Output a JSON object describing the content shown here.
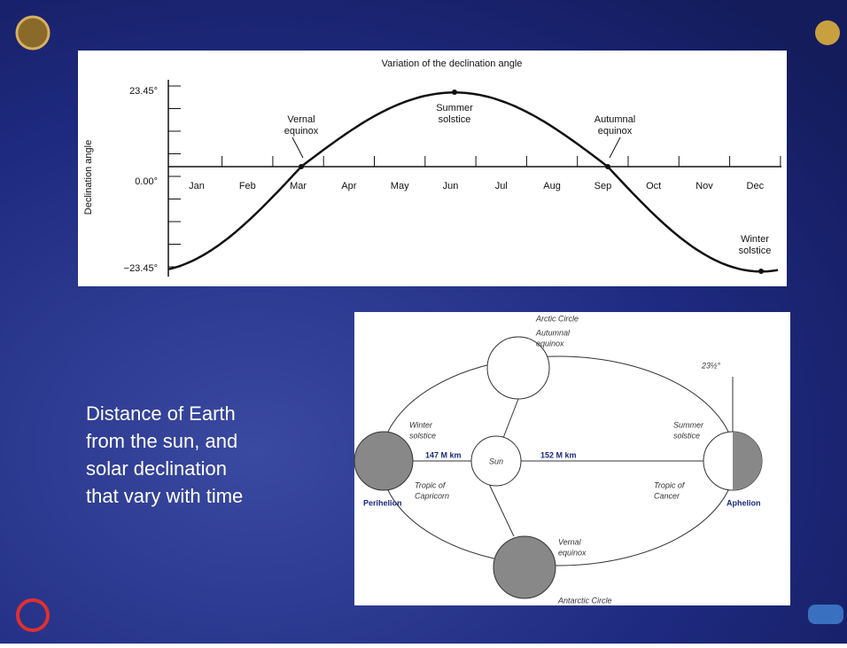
{
  "declination_chart": {
    "title": "Variation of the declination angle",
    "y_axis_label": "Declination angle",
    "y_labels": [
      "23.45°",
      "0.00°",
      "−23.45°"
    ],
    "months": [
      "Jan",
      "Feb",
      "Mar",
      "Apr",
      "May",
      "Jun",
      "Jul",
      "Aug",
      "Sep",
      "Oct",
      "Nov",
      "Dec"
    ],
    "annotations": {
      "vernal": [
        "Vernal",
        "equinox"
      ],
      "summer": [
        "Summer",
        "solstice"
      ],
      "autumnal": [
        "Autumnal",
        "equinox"
      ],
      "winter": [
        "Winter",
        "solstice"
      ]
    }
  },
  "orbit_diagram": {
    "arctic": "Arctic Circle",
    "autumnal": [
      "Autumnal",
      "equinox"
    ],
    "tilt": "23½°",
    "winter": [
      "Winter",
      "solstice"
    ],
    "summer": [
      "Summer",
      "solstice"
    ],
    "near_distance": "147 M km",
    "sun": "Sun",
    "far_distance": "152 M km",
    "capricorn": [
      "Tropic of",
      "Capricorn"
    ],
    "cancer": [
      "Tropic of",
      "Cancer"
    ],
    "perihelion": "Perihelion",
    "aphelion": "Aphelion",
    "vernal": [
      "Vernal",
      "equinox"
    ],
    "antarctic": "Antarctic Circle"
  },
  "caption": [
    "Distance of Earth",
    "from the sun, and",
    "solar declination",
    "that vary with time"
  ]
}
